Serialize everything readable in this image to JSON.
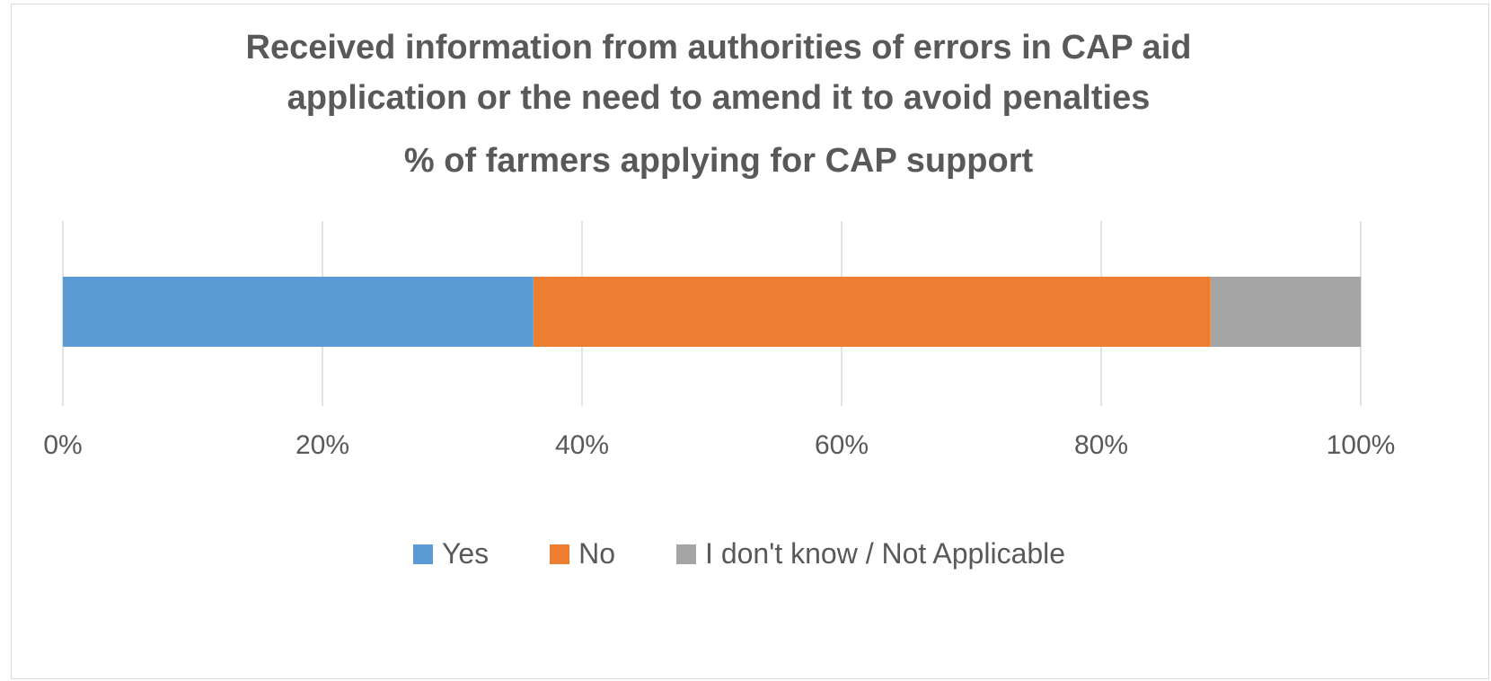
{
  "chart_data": {
    "type": "bar",
    "orientation": "horizontal",
    "stacked": true,
    "title": "Received information from authorities of errors in CAP aid application or the need to amend it to avoid penalties",
    "title_lines": [
      "Received information from authorities of errors in CAP aid",
      "application or the need to amend it to avoid penalties"
    ],
    "subtitle": "% of farmers applying for CAP support",
    "categories": [
      ""
    ],
    "series": [
      {
        "name": "Yes",
        "values": [
          36.2
        ],
        "color": "#5b9bd5"
      },
      {
        "name": "No",
        "values": [
          52.2
        ],
        "color": "#ed7d31"
      },
      {
        "name": "I don't know / Not Applicable",
        "values": [
          11.6
        ],
        "color": "#a5a5a5"
      }
    ],
    "xlim": [
      0,
      100
    ],
    "x_ticks": [
      0,
      20,
      40,
      60,
      80,
      100
    ],
    "x_tick_labels": [
      "0%",
      "20%",
      "40%",
      "60%",
      "80%",
      "100%"
    ],
    "grid": true,
    "legend_position": "bottom"
  }
}
